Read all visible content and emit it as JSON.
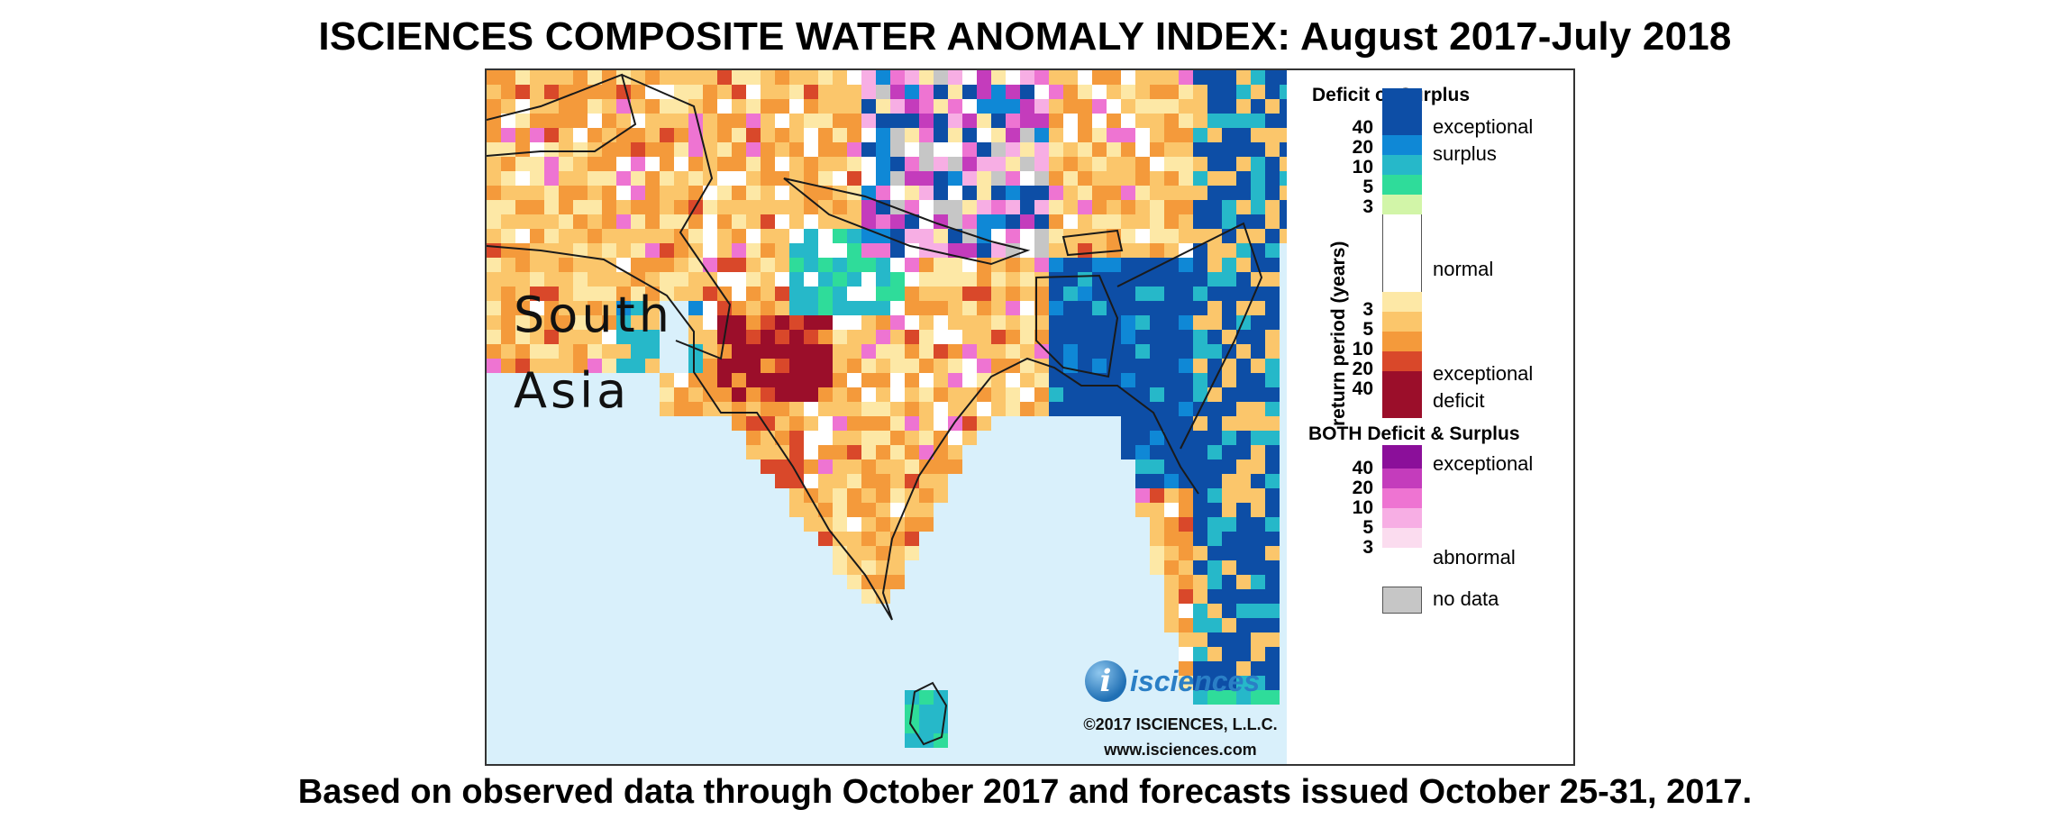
{
  "title": "ISCIENCES COMPOSITE WATER ANOMALY INDEX: August 2017-July 2018",
  "footer": "Based on observed data through October 2017 and forecasts issued October 25-31, 2017.",
  "map": {
    "region_label_line1": "South",
    "region_label_line2": "Asia",
    "logo_text": "isciences",
    "logo_icon": "i-circle-icon",
    "copyright": "©2017 ISCIENCES, L.L.C.",
    "website": "www.isciences.com",
    "colors": {
      "ocean": "#d9f0fb",
      "border": "#1a1a1a"
    }
  },
  "legend": {
    "deficit_surplus_title": "Deficit or Surplus",
    "axis_label": "return period (years)",
    "surplus_ticks": [
      "40",
      "20",
      "10",
      "5",
      "3"
    ],
    "deficit_ticks": [
      "3",
      "5",
      "10",
      "20",
      "40"
    ],
    "exceptional_surplus_line1": "exceptional",
    "exceptional_surplus_line2": "surplus",
    "normal_label": "normal",
    "exceptional_deficit_line1": "exceptional",
    "exceptional_deficit_line2": "deficit",
    "both_title": "BOTH Deficit & Surplus",
    "both_ticks": [
      "40",
      "20",
      "10",
      "5",
      "3"
    ],
    "both_exceptional_label": "exceptional",
    "both_abnormal_label": "abnormal",
    "no_data_label": "no data",
    "colors": {
      "surplus": [
        "#0d4ea6",
        "#0f88d6",
        "#26b8c9",
        "#2fdc9a",
        "#d2f5a8"
      ],
      "normal": "#ffffff",
      "deficit": [
        "#fde8a6",
        "#fbc66b",
        "#f49a3b",
        "#d9482a",
        "#9b0e2a"
      ],
      "both": [
        "#8b0f9a",
        "#c43cbc",
        "#ee74d2",
        "#f7aee4",
        "#fbdcef"
      ],
      "no_data": "#c6c6c6"
    }
  }
}
